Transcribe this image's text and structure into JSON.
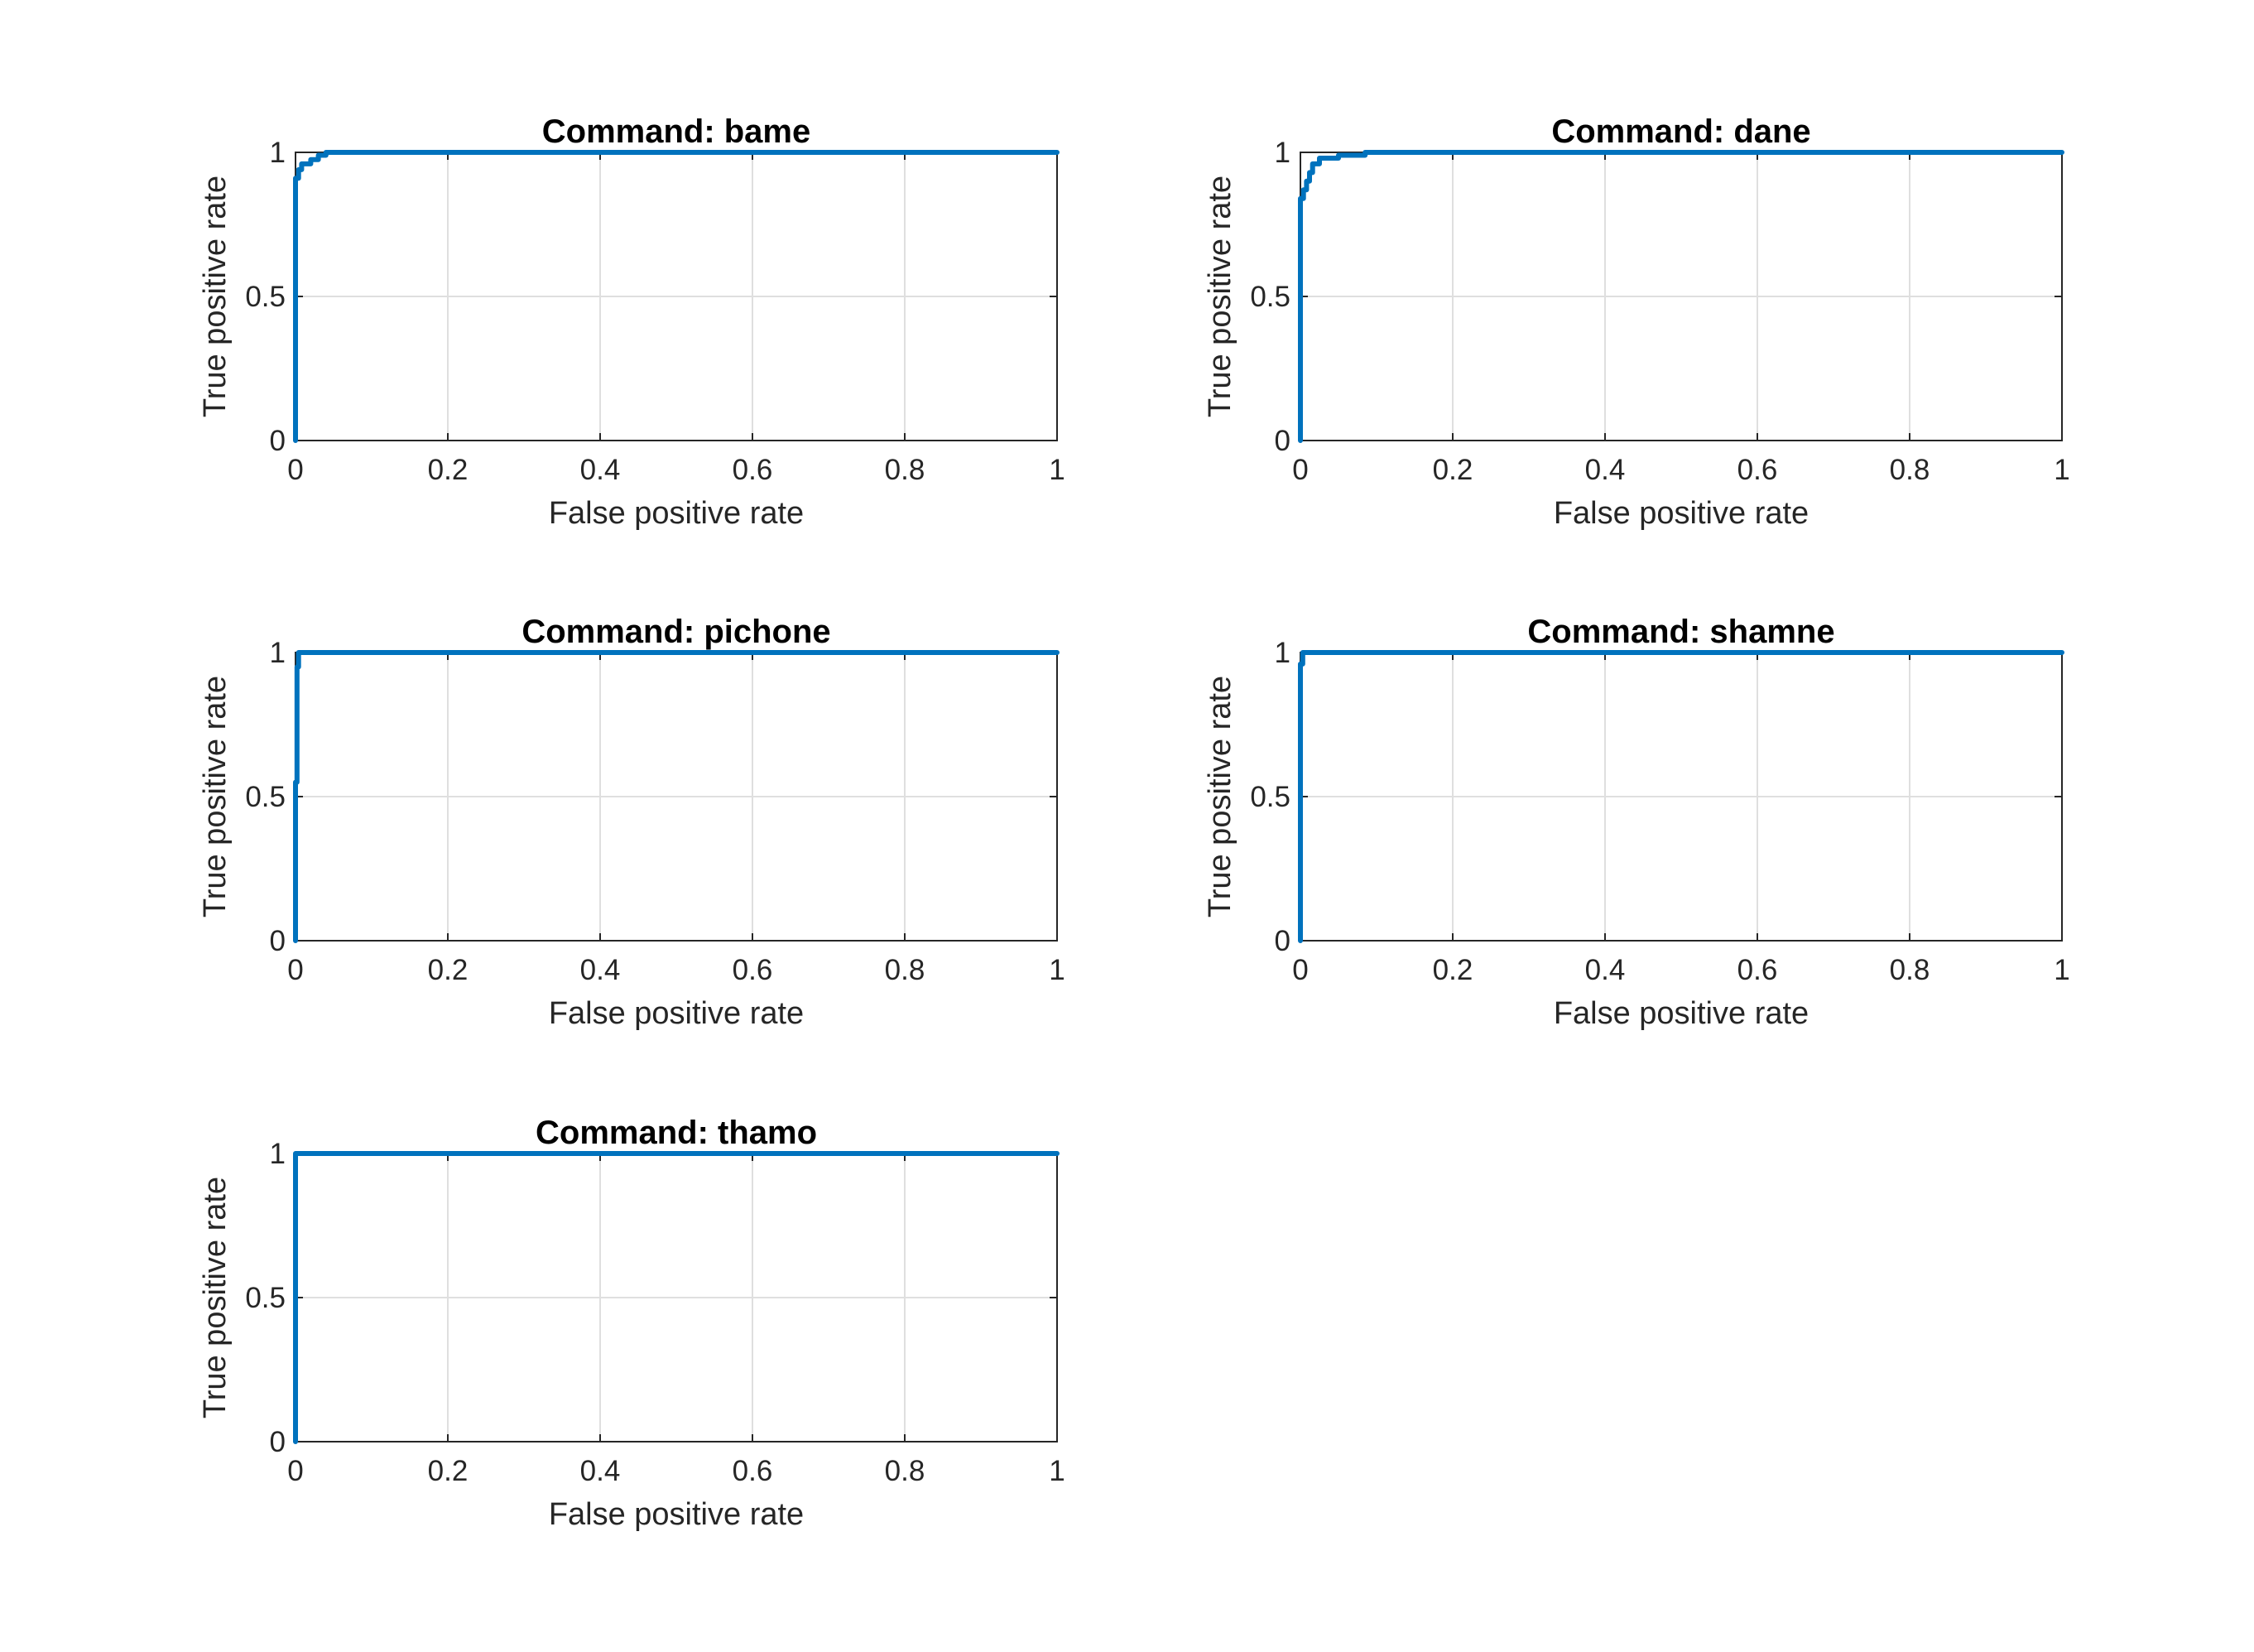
{
  "chart_data": [
    {
      "type": "line",
      "title": "Command: bame",
      "xlabel": "False positive rate",
      "ylabel": "True positive rate",
      "xlim": [
        0,
        1
      ],
      "ylim": [
        0,
        1
      ],
      "xticks": [
        "0",
        "0.2",
        "0.4",
        "0.6",
        "0.8",
        "1"
      ],
      "yticks": [
        "0",
        "0.5",
        "1"
      ],
      "grid": true,
      "series": [
        {
          "color": "#0072BD",
          "x": [
            0,
            0,
            0.004,
            0.004,
            0.008,
            0.008,
            0.02,
            0.02,
            0.03,
            0.03,
            0.04,
            0.04,
            1
          ],
          "y": [
            0,
            0.91,
            0.91,
            0.94,
            0.94,
            0.96,
            0.96,
            0.975,
            0.975,
            0.99,
            0.99,
            1,
            1
          ]
        }
      ]
    },
    {
      "type": "line",
      "title": "Command: dane",
      "xlabel": "False positive rate",
      "ylabel": "True positive rate",
      "xlim": [
        0,
        1
      ],
      "ylim": [
        0,
        1
      ],
      "xticks": [
        "0",
        "0.2",
        "0.4",
        "0.6",
        "0.8",
        "1"
      ],
      "yticks": [
        "0",
        "0.5",
        "1"
      ],
      "grid": true,
      "series": [
        {
          "color": "#0072BD",
          "x": [
            0,
            0,
            0.004,
            0.004,
            0.008,
            0.008,
            0.012,
            0.012,
            0.016,
            0.016,
            0.025,
            0.025,
            0.05,
            0.05,
            0.085,
            0.085,
            1
          ],
          "y": [
            0,
            0.84,
            0.84,
            0.87,
            0.87,
            0.9,
            0.9,
            0.93,
            0.93,
            0.96,
            0.96,
            0.98,
            0.98,
            0.99,
            0.99,
            1,
            1
          ]
        }
      ]
    },
    {
      "type": "line",
      "title": "Command: pichone",
      "xlabel": "False positive rate",
      "ylabel": "True positive rate",
      "xlim": [
        0,
        1
      ],
      "ylim": [
        0,
        1
      ],
      "xticks": [
        "0",
        "0.2",
        "0.4",
        "0.6",
        "0.8",
        "1"
      ],
      "yticks": [
        "0",
        "0.5",
        "1"
      ],
      "grid": true,
      "series": [
        {
          "color": "#0072BD",
          "x": [
            0,
            0,
            0.002,
            0.002,
            0.004,
            0.004,
            1
          ],
          "y": [
            0,
            0.55,
            0.55,
            0.95,
            0.95,
            1,
            1
          ]
        }
      ]
    },
    {
      "type": "line",
      "title": "Command: shamne",
      "xlabel": "False positive rate",
      "ylabel": "True positive rate",
      "xlim": [
        0,
        1
      ],
      "ylim": [
        0,
        1
      ],
      "xticks": [
        "0",
        "0.2",
        "0.4",
        "0.6",
        "0.8",
        "1"
      ],
      "yticks": [
        "0",
        "0.5",
        "1"
      ],
      "grid": true,
      "series": [
        {
          "color": "#0072BD",
          "x": [
            0,
            0,
            0.003,
            0.003,
            1
          ],
          "y": [
            0,
            0.96,
            0.96,
            1,
            1
          ]
        }
      ]
    },
    {
      "type": "line",
      "title": "Command: thamo",
      "xlabel": "False positive rate",
      "ylabel": "True positive rate",
      "xlim": [
        0,
        1
      ],
      "ylim": [
        0,
        1
      ],
      "xticks": [
        "0",
        "0.2",
        "0.4",
        "0.6",
        "0.8",
        "1"
      ],
      "yticks": [
        "0",
        "0.5",
        "1"
      ],
      "grid": true,
      "series": [
        {
          "color": "#0072BD",
          "x": [
            0,
            0,
            1
          ],
          "y": [
            0,
            1,
            1
          ]
        }
      ]
    }
  ]
}
